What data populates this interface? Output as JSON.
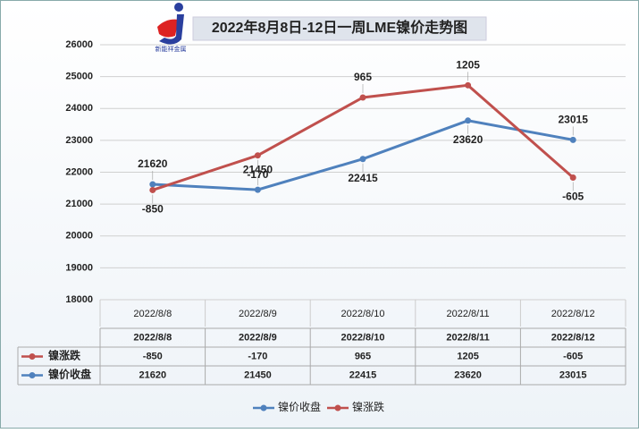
{
  "chart_data": {
    "type": "line",
    "title": "2022年8月8日-12日一周LME镍价走势图",
    "logo_text": "新能祥金属",
    "categories": [
      "2022/8/8",
      "2022/8/9",
      "2022/8/10",
      "2022/8/11",
      "2022/8/12"
    ],
    "series": [
      {
        "name": "镍价收盘",
        "color": "#4f81bd",
        "values": [
          21620,
          21450,
          22415,
          23620,
          23015
        ]
      },
      {
        "name": "镍涨跌",
        "color": "#c0504d",
        "axis": "y2",
        "values": [
          -850,
          -170,
          965,
          1205,
          -605
        ]
      }
    ],
    "ylim": [
      18000,
      26000
    ],
    "yticks": [
      18000,
      19000,
      20000,
      21000,
      22000,
      23000,
      24000,
      25000,
      26000
    ],
    "y2lim": [
      -3000,
      2000
    ],
    "grid": true,
    "legend": "bottom"
  }
}
